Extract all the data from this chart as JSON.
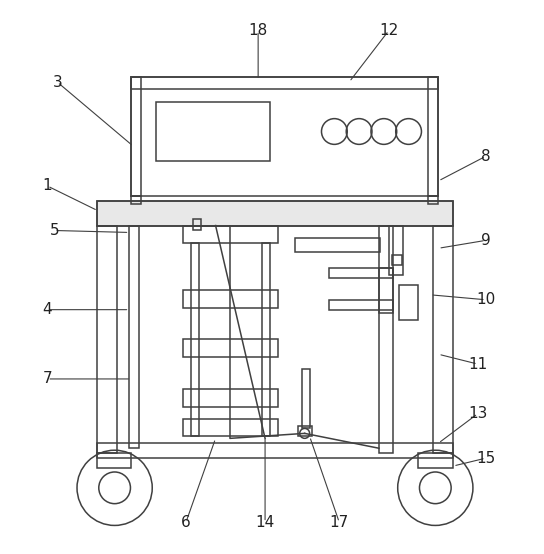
{
  "figsize": [
    5.44,
    5.54
  ],
  "dpi": 100,
  "bg_color": "#ffffff",
  "line_color": "#404040",
  "lw": 1.1,
  "label_color": "#222222",
  "label_fontsize": 11
}
